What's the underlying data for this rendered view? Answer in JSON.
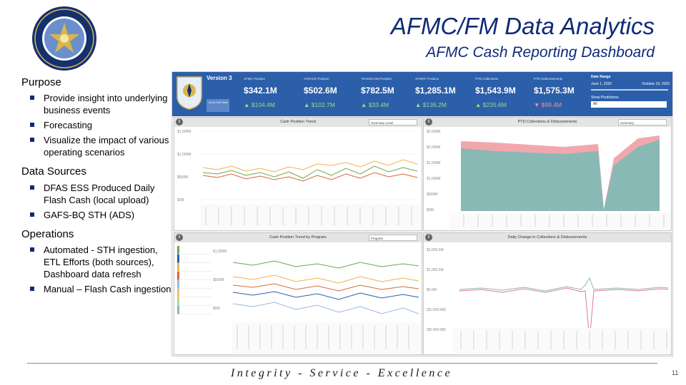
{
  "header": {
    "title": "AFMC/FM Data Analytics",
    "subtitle": "AFMC Cash Reporting Dashboard"
  },
  "sections": [
    {
      "heading": "Purpose",
      "bullets": [
        "Provide insight into underlying business events",
        "Forecasting",
        "Visualize the impact of various operating scenarios"
      ]
    },
    {
      "heading": "Data Sources",
      "bullets": [
        "DFAS ESS Produced Daily Flash Cash (local upload)",
        "GAFS-BQ STH (ADS)"
      ]
    },
    {
      "heading": "Operations",
      "bullets": [
        "Automated - STH ingestion, ETL Efforts (both sources), Dashboard data refresh",
        "Manual – Flash Cash ingestion"
      ]
    }
  ],
  "dashboard": {
    "version": "Version 3",
    "goto_label": "Go to Full View",
    "kpis": [
      {
        "label": "AFMC Position",
        "value": "$342.1M",
        "change": "▲ $104.4M",
        "direction": "up"
      },
      {
        "label": "AFDACE Position",
        "value": "$502.6M",
        "change": "▲ $102.7M",
        "direction": "up"
      },
      {
        "label": "TRANSCOM Position",
        "value": "$782.5M",
        "change": "▲ $33.4M",
        "direction": "up"
      },
      {
        "label": "AFWCF Position",
        "value": "$1,285.1M",
        "change": "▲ $136.2M",
        "direction": "up"
      },
      {
        "label": "PTD Collections",
        "value": "$1,543.9M",
        "change": "▲ $235.6M",
        "direction": "up"
      },
      {
        "label": "PTD Disbursements",
        "value": "$1,575.3M",
        "change": "▼ $99.4M",
        "direction": "down"
      }
    ],
    "date_range": {
      "label": "Date Range",
      "start": "June 1, 2020",
      "end": "October 19, 2020"
    },
    "show_predictions": {
      "label": "Show Predictions",
      "value": "All"
    },
    "panels": {
      "cash_trend": {
        "title": "Cash Position Trend",
        "select": "Summary Level",
        "y_ticks": [
          "$1,500M",
          "$1,000M",
          "$500M",
          "$0M"
        ]
      },
      "ptd": {
        "title": "PTD Collections & Disbursements",
        "select": "Summary",
        "y_ticks": [
          "$2,500M",
          "$2,000M",
          "$1,500M",
          "$1,000M",
          "$500M",
          "$0M"
        ]
      },
      "program": {
        "title": "Cash Position Trend by Program",
        "select": "Program",
        "y_ticks": [
          "$1,000M",
          "$500M",
          "$0M"
        ]
      },
      "daily": {
        "title": "Daily Change in Collections & Disbursements",
        "y_ticks": [
          "$2,000.0M",
          "$1,000.0M",
          "$0.0M",
          "($1,000.0M)",
          "($2,000.0M)"
        ]
      }
    },
    "colors": {
      "header": "#2c5faa",
      "collections": "#88b9b4",
      "disbursements": "#f1a8ad",
      "change_up": "#9ed68a",
      "change_down": "#f2928f"
    },
    "info_icon": "info-icon"
  },
  "footer": {
    "motto": "Integrity - Service - Excellence",
    "page_number": "11"
  }
}
